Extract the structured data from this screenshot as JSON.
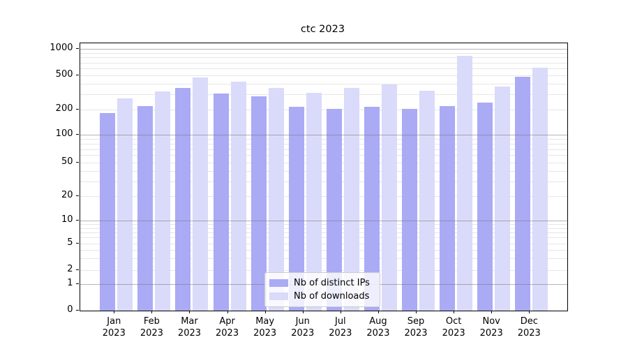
{
  "title": "ctc 2023",
  "chart_data": {
    "type": "bar",
    "title": "ctc 2023",
    "categories": [
      "Jan 2023",
      "Feb 2023",
      "Mar 2023",
      "Apr 2023",
      "May 2023",
      "Jun 2023",
      "Jul 2023",
      "Aug 2023",
      "Sep 2023",
      "Oct 2023",
      "Nov 2023",
      "Dec 2023"
    ],
    "series": [
      {
        "name": "Nb of distinct IPs",
        "color": "#aaaaf5",
        "values": [
          180,
          220,
          360,
          310,
          285,
          215,
          205,
          215,
          205,
          220,
          240,
          480
        ]
      },
      {
        "name": "Nb of downloads",
        "color": "#dadafa",
        "values": [
          270,
          325,
          475,
          420,
          360,
          315,
          360,
          395,
          330,
          840,
          370,
          610
        ]
      }
    ],
    "xlabel": "",
    "ylabel": "",
    "y_ticks": [
      0,
      1,
      2,
      5,
      10,
      20,
      50,
      100,
      200,
      500,
      1000
    ],
    "yscale": "symlog",
    "ylim": [
      0,
      1100
    ],
    "grid": true,
    "legend_position": "lower center"
  },
  "colors": {
    "bar_ips": "#aaaaf5",
    "bar_downloads": "#dadafa",
    "grid_minor": "#bebebe",
    "grid_major": "#787878",
    "axis": "#000000",
    "background": "#ffffff"
  }
}
